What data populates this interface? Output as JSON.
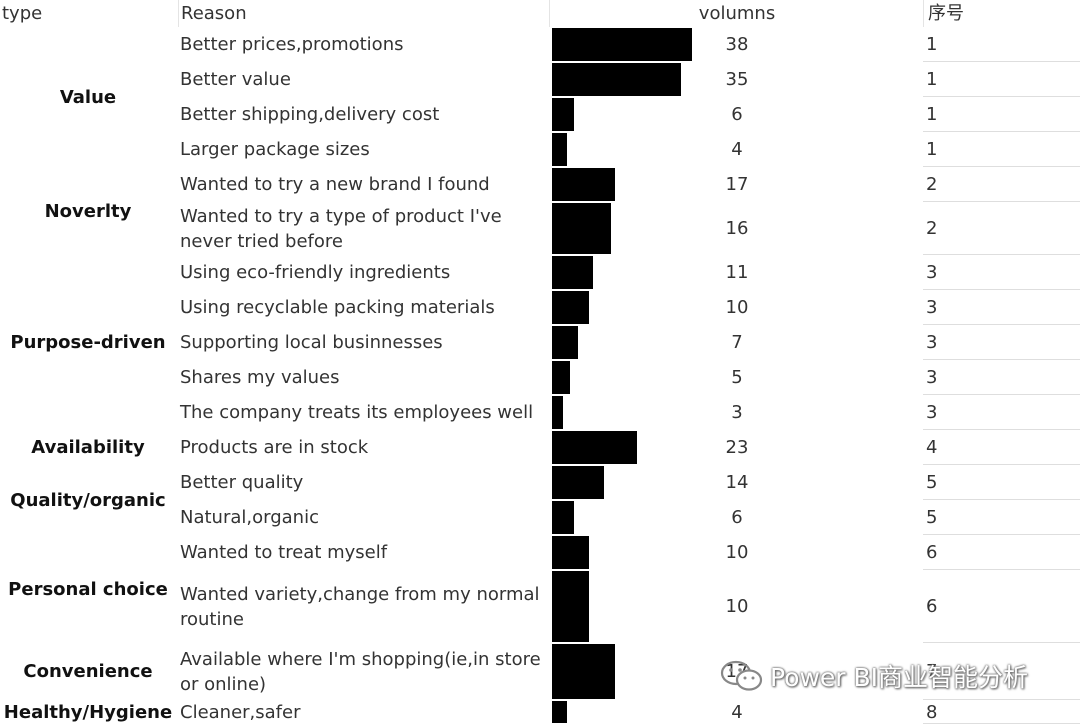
{
  "headers": {
    "type": "type",
    "reason": "Reason",
    "volumns": "volumns",
    "index": "序号"
  },
  "types": [
    {
      "label": "Value"
    },
    {
      "label": "Noverlty"
    },
    {
      "label": "Purpose-driven"
    },
    {
      "label": "Availability"
    },
    {
      "label": "Quality/organic"
    },
    {
      "label": "Personal choice"
    },
    {
      "label": "Convenience"
    },
    {
      "label": "Healthy/Hygiene"
    }
  ],
  "rows": [
    {
      "reason": "Better prices,promotions",
      "volume": 38,
      "index": "1"
    },
    {
      "reason": "Better value",
      "volume": 35,
      "index": "1"
    },
    {
      "reason": "Better shipping,delivery cost",
      "volume": 6,
      "index": "1"
    },
    {
      "reason": "Larger package sizes",
      "volume": 4,
      "index": "1"
    },
    {
      "reason": "Wanted to try a new brand I found",
      "volume": 17,
      "index": "2"
    },
    {
      "reason": "Wanted to try a type of product I've never tried before",
      "volume": 16,
      "index": "2"
    },
    {
      "reason": "Using eco-friendly ingredients",
      "volume": 11,
      "index": "3"
    },
    {
      "reason": "Using recyclable packing materials",
      "volume": 10,
      "index": "3"
    },
    {
      "reason": "Supporting local businnesses",
      "volume": 7,
      "index": "3"
    },
    {
      "reason": "Shares my values",
      "volume": 5,
      "index": "3"
    },
    {
      "reason": "The company treats its employees well",
      "volume": 3,
      "index": "3"
    },
    {
      "reason": "Products are in stock",
      "volume": 23,
      "index": "4"
    },
    {
      "reason": "Better quality",
      "volume": 14,
      "index": "5"
    },
    {
      "reason": "Natural,organic",
      "volume": 6,
      "index": "5"
    },
    {
      "reason": "Wanted to treat myself",
      "volume": 10,
      "index": "6"
    },
    {
      "reason": "Wanted variety,change from my normal routine",
      "volume": 10,
      "index": "6"
    },
    {
      "reason": "Available where I'm shopping(ie,in store or online)",
      "volume": 17,
      "index": "7"
    },
    {
      "reason": "Cleaner,safer",
      "volume": 4,
      "index": "8"
    }
  ],
  "watermark": {
    "text": "Power BI商业智能分析",
    "icon": "wechat-icon"
  },
  "colors": {
    "bar": "#000000",
    "background": "#ffffff"
  }
}
